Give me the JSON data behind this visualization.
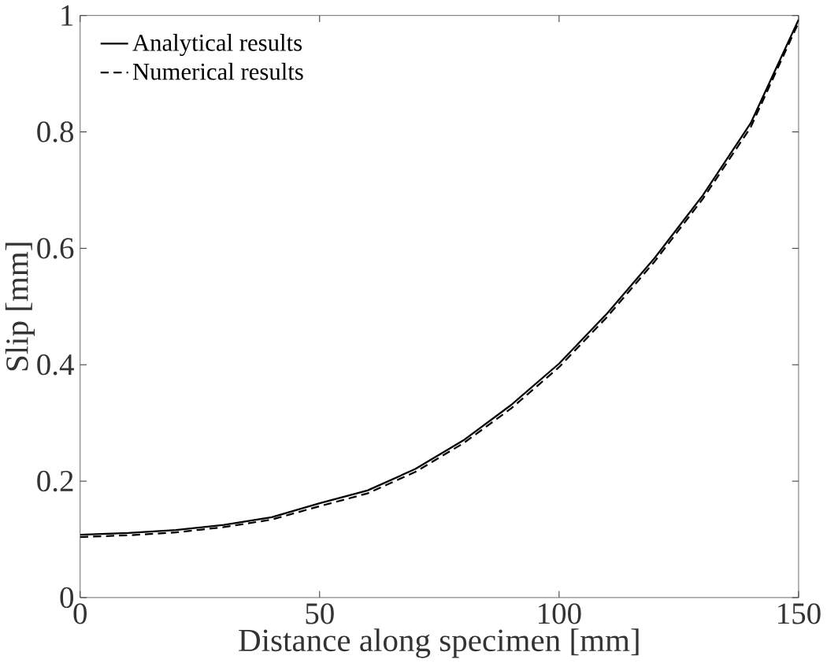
{
  "chart_data": {
    "type": "line",
    "xlabel": "Distance along specimen [mm]",
    "ylabel": "Slip [mm]",
    "x": [
      0,
      10,
      20,
      30,
      40,
      50,
      60,
      70,
      80,
      90,
      100,
      110,
      120,
      130,
      140,
      150
    ],
    "series": [
      {
        "name": "Analytical results",
        "color": "#000000",
        "line_style": "solid",
        "values": [
          0.108,
          0.111,
          0.116,
          0.125,
          0.138,
          0.162,
          0.184,
          0.221,
          0.27,
          0.331,
          0.402,
          0.488,
          0.584,
          0.691,
          0.815,
          0.993
        ]
      },
      {
        "name": "Numerical results",
        "color": "#000000",
        "line_style": "dashed",
        "values": [
          0.104,
          0.107,
          0.112,
          0.121,
          0.134,
          0.157,
          0.179,
          0.216,
          0.265,
          0.325,
          0.396,
          0.482,
          0.578,
          0.685,
          0.808,
          0.988
        ]
      }
    ],
    "xlim": [
      0,
      150
    ],
    "ylim": [
      0,
      1
    ],
    "xticks": [
      0,
      50,
      100,
      150
    ],
    "yticks": [
      0,
      0.2,
      0.4,
      0.6,
      0.8,
      1
    ],
    "legend": "top left",
    "grid": false,
    "marker": "none"
  }
}
